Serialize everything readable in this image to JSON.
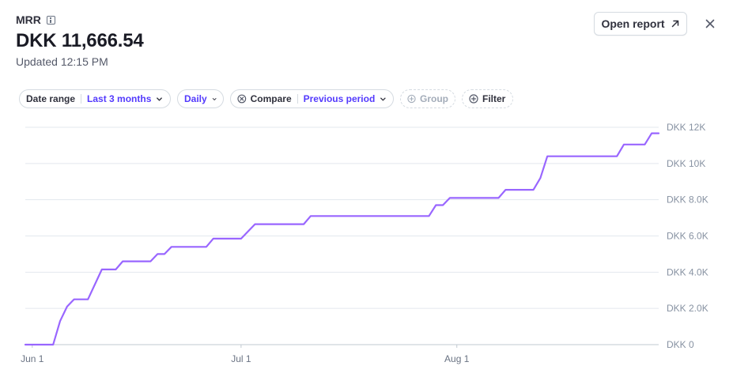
{
  "header": {
    "metric_name": "MRR",
    "metric_value": "DKK 11,666.54",
    "updated": "Updated 12:15 PM",
    "open_report_label": "Open report"
  },
  "filters": {
    "date_range_label": "Date range",
    "date_range_value": "Last 3 months",
    "interval_value": "Daily",
    "compare_label": "Compare",
    "compare_value": "Previous period",
    "group_label": "Group",
    "filter_label": "Filter"
  },
  "colors": {
    "line": "#9966ff",
    "accent": "#533afd",
    "grid": "#e3e8ee"
  },
  "chart_data": {
    "type": "line",
    "series": [
      {
        "values": [
          [
            0,
            0
          ],
          [
            4,
            0
          ],
          [
            5,
            1300
          ],
          [
            6,
            2100
          ],
          [
            7,
            2500
          ],
          [
            9,
            2500
          ],
          [
            11,
            4150
          ],
          [
            13,
            4150
          ],
          [
            14,
            4600
          ],
          [
            18,
            4600
          ],
          [
            19,
            5000
          ],
          [
            20,
            5000
          ],
          [
            21,
            5400
          ],
          [
            26,
            5400
          ],
          [
            27,
            5850
          ],
          [
            31,
            5850
          ],
          [
            33,
            6650
          ],
          [
            40,
            6650
          ],
          [
            41,
            7100
          ],
          [
            58,
            7100
          ],
          [
            59,
            7700
          ],
          [
            60,
            7700
          ],
          [
            61,
            8100
          ],
          [
            68,
            8100
          ],
          [
            69,
            8550
          ],
          [
            73,
            8550
          ],
          [
            74,
            9200
          ],
          [
            75,
            10400
          ],
          [
            85,
            10400
          ],
          [
            86,
            11050
          ],
          [
            89,
            11050
          ],
          [
            90,
            11666.54
          ],
          [
            91,
            11666.54
          ]
        ]
      }
    ],
    "x_ticks": [
      {
        "day": 1,
        "label": "Jun 1"
      },
      {
        "day": 31,
        "label": "Jul 1"
      },
      {
        "day": 62,
        "label": "Aug 1"
      }
    ],
    "y_ticks": [
      {
        "value": 0,
        "label": "DKK 0"
      },
      {
        "value": 2000,
        "label": "DKK 2.0K"
      },
      {
        "value": 4000,
        "label": "DKK 4.0K"
      },
      {
        "value": 6000,
        "label": "DKK 6.0K"
      },
      {
        "value": 8000,
        "label": "DKK 8.0K"
      },
      {
        "value": 10000,
        "label": "DKK 10K"
      },
      {
        "value": 12000,
        "label": "DKK 12K"
      }
    ],
    "ylim": [
      0,
      12000
    ],
    "xlim": [
      0,
      91
    ],
    "grid": true
  }
}
